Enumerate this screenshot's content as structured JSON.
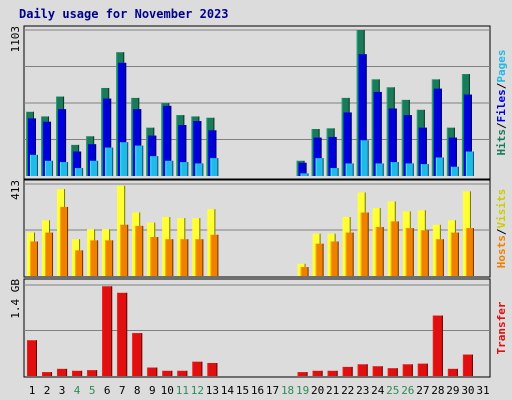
{
  "title": "Daily usage for November 2023",
  "colors": {
    "background": "#dcdcdc",
    "panel": "#dcdcdc",
    "grid": "#808080",
    "hits": "#1a7a5a",
    "files": "#0000d8",
    "pages": "#22b8e8",
    "visits": "#ffff33",
    "hosts": "#f08000",
    "transfer": "#e01010",
    "weekend_label": "#2e8b57",
    "title": "#00008b"
  },
  "chart_data": [
    {
      "type": "bar",
      "name": "hits-files-pages",
      "max_label": "1103",
      "ylim": [
        0,
        1103
      ],
      "right_label": [
        {
          "text": "Hits",
          "color": "#1a7a5a"
        },
        {
          "text": "/",
          "color": "#000000"
        },
        {
          "text": "Files",
          "color": "#0000d8"
        },
        {
          "text": "/",
          "color": "#000000"
        },
        {
          "text": "Pages",
          "color": "#22b8e8"
        }
      ],
      "series": [
        {
          "name": "Hits",
          "color": "#1a7a5a",
          "values": [
            485,
            450,
            600,
            235,
            300,
            665,
            935,
            590,
            365,
            550,
            460,
            450,
            440,
            0,
            0,
            0,
            0,
            0,
            115,
            355,
            360,
            590,
            1103,
            730,
            670,
            575,
            500,
            730,
            365,
            770,
            0
          ]
        },
        {
          "name": "Files",
          "color": "#0000d8",
          "values": [
            435,
            410,
            505,
            185,
            240,
            585,
            855,
            505,
            305,
            530,
            385,
            415,
            345,
            0,
            0,
            0,
            0,
            0,
            100,
            290,
            295,
            480,
            920,
            635,
            510,
            460,
            365,
            660,
            290,
            615,
            0
          ]
        },
        {
          "name": "Pages",
          "color": "#22b8e8",
          "values": [
            160,
            115,
            105,
            60,
            115,
            215,
            255,
            230,
            150,
            115,
            105,
            95,
            135,
            0,
            0,
            0,
            0,
            0,
            20,
            135,
            60,
            95,
            270,
            95,
            105,
            95,
            90,
            140,
            70,
            185,
            0
          ]
        }
      ]
    },
    {
      "type": "bar",
      "name": "visits-hosts",
      "max_label": "413",
      "ylim": [
        0,
        413
      ],
      "right_label": [
        {
          "text": "Hosts",
          "color": "#f08000"
        },
        {
          "text": "/",
          "color": "#000000"
        },
        {
          "text": "Visits",
          "color": "#cccc00"
        }
      ],
      "series": [
        {
          "name": "Visits",
          "color": "#ffff33",
          "values": [
            195,
            250,
            390,
            165,
            210,
            210,
            405,
            285,
            240,
            265,
            260,
            260,
            300,
            0,
            0,
            0,
            0,
            0,
            55,
            190,
            190,
            265,
            375,
            305,
            335,
            290,
            295,
            230,
            250,
            380,
            0
          ]
        },
        {
          "name": "Hosts",
          "color": "#f08000",
          "values": [
            155,
            195,
            310,
            115,
            160,
            160,
            230,
            225,
            175,
            165,
            165,
            165,
            185,
            0,
            0,
            0,
            0,
            0,
            40,
            145,
            155,
            195,
            285,
            220,
            245,
            215,
            205,
            165,
            195,
            215,
            0
          ]
        }
      ]
    },
    {
      "type": "bar",
      "name": "transfer",
      "max_label": "1.4 GB",
      "ylim": [
        0,
        1.4
      ],
      "right_label": [
        {
          "text": "Transfer",
          "color": "#e01010"
        }
      ],
      "series": [
        {
          "name": "Transfer",
          "color": "#e01010",
          "values": [
            0.55,
            0.06,
            0.11,
            0.08,
            0.09,
            1.38,
            1.28,
            0.66,
            0.13,
            0.08,
            0.08,
            0.22,
            0.2,
            0,
            0,
            0,
            0,
            0,
            0.06,
            0.08,
            0.08,
            0.14,
            0.18,
            0.15,
            0.12,
            0.18,
            0.19,
            0.93,
            0.11,
            0.33,
            0
          ]
        }
      ]
    }
  ],
  "days": [
    {
      "label": "1",
      "weekend": false
    },
    {
      "label": "2",
      "weekend": false
    },
    {
      "label": "3",
      "weekend": false
    },
    {
      "label": "4",
      "weekend": true
    },
    {
      "label": "5",
      "weekend": true
    },
    {
      "label": "6",
      "weekend": false
    },
    {
      "label": "7",
      "weekend": false
    },
    {
      "label": "8",
      "weekend": false
    },
    {
      "label": "9",
      "weekend": false
    },
    {
      "label": "10",
      "weekend": false
    },
    {
      "label": "11",
      "weekend": true
    },
    {
      "label": "12",
      "weekend": true
    },
    {
      "label": "13",
      "weekend": false
    },
    {
      "label": "14",
      "weekend": false
    },
    {
      "label": "15",
      "weekend": false
    },
    {
      "label": "16",
      "weekend": false
    },
    {
      "label": "17",
      "weekend": false
    },
    {
      "label": "18",
      "weekend": true
    },
    {
      "label": "19",
      "weekend": true
    },
    {
      "label": "20",
      "weekend": false
    },
    {
      "label": "21",
      "weekend": false
    },
    {
      "label": "22",
      "weekend": false
    },
    {
      "label": "23",
      "weekend": false
    },
    {
      "label": "24",
      "weekend": false
    },
    {
      "label": "25",
      "weekend": true
    },
    {
      "label": "26",
      "weekend": true
    },
    {
      "label": "27",
      "weekend": false
    },
    {
      "label": "28",
      "weekend": false
    },
    {
      "label": "29",
      "weekend": false
    },
    {
      "label": "30",
      "weekend": false
    },
    {
      "label": "31",
      "weekend": false
    }
  ]
}
